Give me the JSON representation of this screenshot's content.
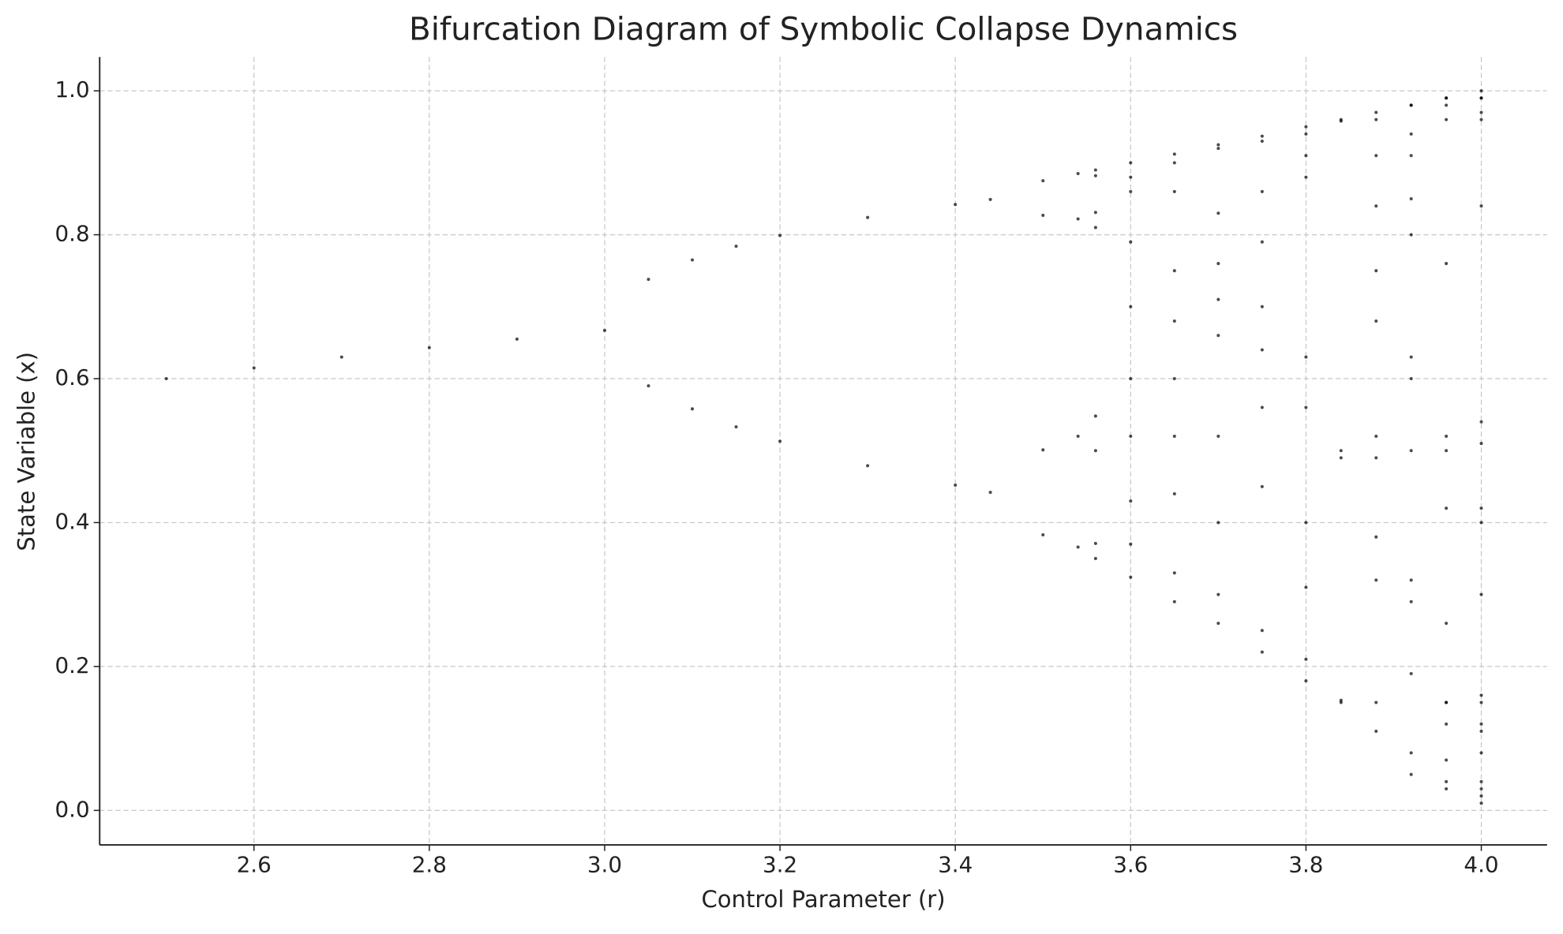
{
  "chart_data": {
    "type": "scatter",
    "title": "Bifurcation Diagram of Symbolic Collapse Dynamics",
    "x_label": "Control Parameter (r)",
    "y_label": "State Variable (x)",
    "color": "#000000",
    "grid": true,
    "xlim": [
      2.424,
      4.075
    ],
    "ylim": [
      -0.048,
      1.047
    ],
    "xticks": [
      2.6,
      2.8,
      {
        "value": 3,
        "label": "3.0"
      },
      3.2,
      3.4,
      3.6,
      3.8,
      {
        "value": 4,
        "label": "4.0"
      }
    ],
    "yticks": [
      {
        "value": 0,
        "label": "0.0"
      },
      0.2,
      0.4,
      0.6,
      0.8,
      {
        "value": 1,
        "label": "1.0"
      }
    ],
    "x": [
      2.5,
      2.6,
      2.7,
      2.8,
      2.9,
      3.0,
      3.05,
      3.05,
      3.1,
      3.1,
      3.15,
      3.15,
      3.2,
      3.2,
      3.3,
      3.3,
      3.4,
      3.4,
      3.44,
      3.44,
      3.5,
      3.5,
      3.5,
      3.5,
      3.54,
      3.54,
      3.54,
      3.54,
      3.56,
      3.56,
      3.56,
      3.56,
      3.56,
      3.56,
      3.56,
      3.56,
      3.6,
      3.6,
      3.6,
      3.6,
      3.6,
      3.6,
      3.6,
      3.6,
      3.6,
      3.6,
      3.65,
      3.65,
      3.65,
      3.65,
      3.65,
      3.65,
      3.65,
      3.65,
      3.65,
      3.65,
      3.7,
      3.7,
      3.7,
      3.7,
      3.7,
      3.7,
      3.7,
      3.7,
      3.7,
      3.7,
      3.75,
      3.75,
      3.75,
      3.75,
      3.75,
      3.75,
      3.75,
      3.75,
      3.75,
      3.75,
      3.8,
      3.8,
      3.8,
      3.8,
      3.8,
      3.8,
      3.8,
      3.8,
      3.8,
      3.8,
      3.84,
      3.84,
      3.84,
      3.84,
      3.84,
      3.84,
      3.88,
      3.88,
      3.88,
      3.88,
      3.88,
      3.88,
      3.88,
      3.88,
      3.88,
      3.88,
      3.88,
      3.88,
      3.92,
      3.92,
      3.92,
      3.92,
      3.92,
      3.92,
      3.92,
      3.92,
      3.92,
      3.92,
      3.92,
      3.92,
      3.92,
      3.92,
      3.96,
      3.96,
      3.96,
      3.96,
      3.96,
      3.96,
      3.96,
      3.96,
      3.96,
      3.96,
      3.96,
      3.96,
      3.96,
      3.96,
      3.96,
      4.0,
      4.0,
      4.0,
      4.0,
      4.0,
      4.0,
      4.0,
      4.0,
      4.0,
      4.0,
      4.0,
      4.0,
      4.0,
      4.0,
      4.0,
      4.0,
      4.0,
      4.0,
      4.0,
      4.0
    ],
    "values": [
      0.6,
      0.615,
      0.63,
      0.643,
      0.655,
      0.667,
      0.738,
      0.59,
      0.765,
      0.558,
      0.784,
      0.533,
      0.799,
      0.513,
      0.824,
      0.479,
      0.842,
      0.452,
      0.849,
      0.442,
      0.875,
      0.383,
      0.827,
      0.501,
      0.885,
      0.366,
      0.822,
      0.52,
      0.89,
      0.35,
      0.81,
      0.548,
      0.882,
      0.371,
      0.831,
      0.5,
      0.9,
      0.324,
      0.79,
      0.6,
      0.86,
      0.43,
      0.88,
      0.37,
      0.7,
      0.52,
      0.912,
      0.29,
      0.75,
      0.68,
      0.86,
      0.44,
      0.9,
      0.33,
      0.6,
      0.52,
      0.925,
      0.26,
      0.71,
      0.76,
      0.66,
      0.83,
      0.52,
      0.92,
      0.3,
      0.4,
      0.937,
      0.22,
      0.64,
      0.86,
      0.45,
      0.93,
      0.25,
      0.7,
      0.79,
      0.56,
      0.95,
      0.18,
      0.56,
      0.94,
      0.21,
      0.63,
      0.88,
      0.4,
      0.91,
      0.31,
      0.96,
      0.15,
      0.49,
      0.958,
      0.153,
      0.5,
      0.97,
      0.11,
      0.38,
      0.91,
      0.32,
      0.84,
      0.52,
      0.96,
      0.15,
      0.49,
      0.68,
      0.75,
      0.98,
      0.08,
      0.29,
      0.8,
      0.63,
      0.91,
      0.32,
      0.85,
      0.5,
      0.98,
      0.05,
      0.19,
      0.6,
      0.94,
      0.99,
      0.04,
      0.15,
      0.5,
      0.99,
      0.03,
      0.12,
      0.42,
      0.96,
      0.15,
      0.52,
      0.98,
      0.07,
      0.26,
      0.76,
      1,
      0.01,
      0.04,
      0.15,
      0.51,
      0.99,
      0.03,
      0.12,
      0.42,
      0.97,
      0.11,
      0.4,
      0.96,
      0.16,
      0.54,
      0.99,
      0.02,
      0.08,
      0.3,
      0.84
    ]
  }
}
